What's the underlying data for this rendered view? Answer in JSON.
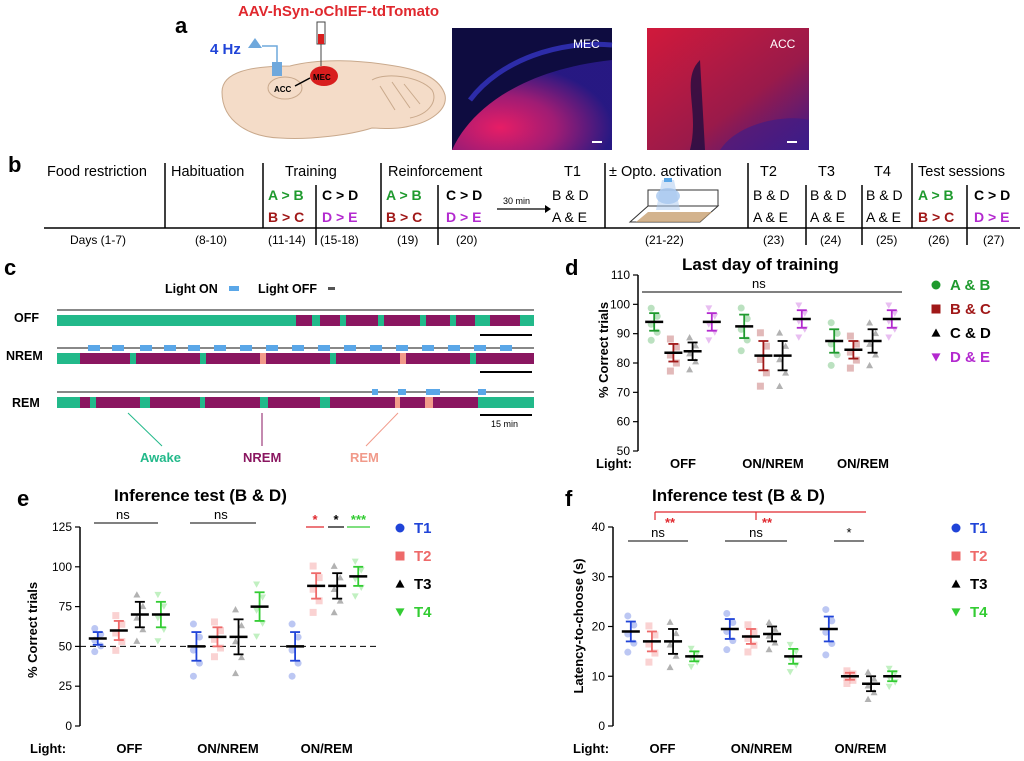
{
  "panel_labels": {
    "a": "a",
    "b": "b",
    "c": "c",
    "d": "d",
    "e": "e",
    "f": "f"
  },
  "colors": {
    "green": "#1f9a2e",
    "darkred": "#a01818",
    "black": "#000000",
    "purple": "#b329cf",
    "blue": "#2044d8",
    "salmon": "#ee6a6a",
    "bright_green": "#33cc33",
    "red": "#e0282e",
    "awake": "#22b98a",
    "nrem": "#8a1660",
    "rem": "#f19a8a",
    "light_on": "#5aa7e8",
    "brain": "#f4dcc8",
    "brain_edge": "#c9a98c"
  },
  "panel_a": {
    "virus_label": "AAV-hSyn-oChIEF-tdTomato",
    "freq_label": "4 Hz",
    "acc_label": "ACC",
    "mec_label": "MEC",
    "image1_label": "MEC",
    "image2_label": "ACC"
  },
  "panel_b": {
    "stages": [
      {
        "title": "Food restriction",
        "days": "Days (1-7)"
      },
      {
        "title": "Habituation",
        "days": "(8-10)"
      },
      {
        "title": "Training",
        "days": "(11-14)"
      },
      {
        "days": "(15-18)"
      },
      {
        "title": "Reinforcement",
        "days": "(19)"
      },
      {
        "days": "(20)"
      },
      {
        "title": "T1",
        "days": ""
      },
      {
        "title": "± Opto. activation",
        "days": "(21-22)"
      },
      {
        "title": "T2",
        "days": "(23)"
      },
      {
        "title": "T3",
        "days": "(24)"
      },
      {
        "title": "T4",
        "days": "(25)"
      },
      {
        "title": "Test sessions",
        "days": "(26)"
      },
      {
        "days": "(27)"
      }
    ],
    "pair_ab": "A > B",
    "pair_bc": "B > C",
    "pair_cd": "C > D",
    "pair_de": "D > E",
    "test_bd": "B & D",
    "test_ae": "A & E",
    "arrow_label": "30 min"
  },
  "panel_c": {
    "legend_on": "Light ON",
    "legend_off": "Light OFF",
    "rows": [
      "OFF",
      "NREM",
      "REM"
    ],
    "scale_label": "15 min",
    "state_labels": [
      "Awake",
      "NREM",
      "REM"
    ]
  },
  "chart_data": [
    {
      "panel": "d",
      "type": "scatter",
      "title": "Last day of training",
      "xlabel": "Light:",
      "ylabel": "% Correct trials",
      "ylim": [
        50,
        110
      ],
      "yticks": [
        50,
        60,
        70,
        80,
        90,
        100,
        110
      ],
      "groups": [
        "OFF",
        "ON/NREM",
        "ON/REM"
      ],
      "significance": "ns",
      "series": [
        {
          "name": "A & B",
          "marker": "circle",
          "means": [
            94,
            92.5,
            87.5
          ],
          "sems": [
            3,
            4,
            4
          ]
        },
        {
          "name": "B & C",
          "marker": "square",
          "means": [
            83.5,
            82.5,
            84.5
          ],
          "sems": [
            3,
            5,
            3
          ]
        },
        {
          "name": "C & D",
          "marker": "triangle-up",
          "means": [
            84,
            82.5,
            87.5
          ],
          "sems": [
            3,
            5,
            4
          ]
        },
        {
          "name": "D & E",
          "marker": "triangle-down",
          "means": [
            94,
            95,
            95
          ],
          "sems": [
            3,
            3,
            3
          ]
        }
      ]
    },
    {
      "panel": "e",
      "type": "scatter",
      "title": "Inference test (B & D)",
      "xlabel": "Light:",
      "ylabel": "% Correct trials",
      "ylim": [
        0,
        125
      ],
      "yticks": [
        0,
        25,
        50,
        75,
        100,
        125
      ],
      "chance_line": 50,
      "groups": [
        "OFF",
        "ON/NREM",
        "ON/REM"
      ],
      "group_significance": [
        "ns",
        "ns",
        ""
      ],
      "rem_significance": [
        "*",
        "*",
        "***"
      ],
      "series": [
        {
          "name": "T1",
          "marker": "circle",
          "means": [
            55,
            50,
            50
          ],
          "sems": [
            4,
            9,
            9
          ]
        },
        {
          "name": "T2",
          "marker": "square",
          "means": [
            60,
            56,
            88
          ],
          "sems": [
            6,
            6,
            8
          ]
        },
        {
          "name": "T3",
          "marker": "triangle-up",
          "means": [
            70,
            56,
            88
          ],
          "sems": [
            8,
            11,
            8
          ]
        },
        {
          "name": "T4",
          "marker": "triangle-down",
          "means": [
            70,
            75,
            94
          ],
          "sems": [
            8,
            9,
            6
          ]
        }
      ]
    },
    {
      "panel": "f",
      "type": "scatter",
      "title": "Inference test (B & D)",
      "xlabel": "Light:",
      "ylabel": "Latency-to-choose (s)",
      "ylim": [
        0,
        40
      ],
      "yticks": [
        0,
        10,
        20,
        30,
        40
      ],
      "groups": [
        "OFF",
        "ON/NREM",
        "ON/REM"
      ],
      "group_significance": [
        "ns",
        "ns",
        "*"
      ],
      "top_significance": [
        "**",
        "**"
      ],
      "series": [
        {
          "name": "T1",
          "marker": "circle",
          "means": [
            19,
            19.5,
            19.5
          ],
          "sems": [
            2,
            2,
            2.5
          ]
        },
        {
          "name": "T2",
          "marker": "square",
          "means": [
            17,
            18,
            10
          ],
          "sems": [
            2,
            1.5,
            0.7
          ]
        },
        {
          "name": "T3",
          "marker": "triangle-up",
          "means": [
            17,
            18.5,
            8.5
          ],
          "sems": [
            2.5,
            1.5,
            1.5
          ]
        },
        {
          "name": "T4",
          "marker": "triangle-down",
          "means": [
            14,
            14,
            10
          ],
          "sems": [
            1,
            1.5,
            1
          ]
        }
      ]
    }
  ]
}
